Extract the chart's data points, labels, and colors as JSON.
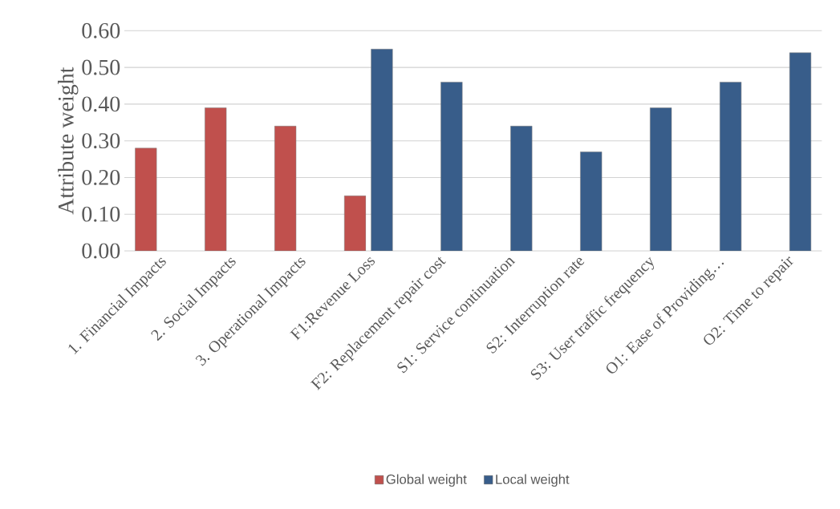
{
  "chart_data": {
    "type": "bar",
    "ylabel": "Attribute weight",
    "categories": [
      "1. Financial Impacts",
      "2. Social Impacts",
      "3. Operational Impacts",
      "F1:Revenue Loss",
      "F2: Replacement repair cost",
      "S1: Service continuation",
      "S2: Interruption rate",
      "S3: User traffic frequency",
      "O1: Ease of Providing…",
      "O2: Time to repair"
    ],
    "series": [
      {
        "name": "Global weight",
        "color": "#c0504d",
        "values": [
          0.28,
          0.39,
          0.34,
          0.15,
          null,
          null,
          null,
          null,
          null,
          null
        ]
      },
      {
        "name": "Local weight",
        "color": "#385d8a",
        "values": [
          null,
          null,
          null,
          0.55,
          0.46,
          0.34,
          0.27,
          0.39,
          0.46,
          0.54
        ]
      }
    ],
    "ylim": [
      0,
      0.6
    ],
    "yticks": [
      {
        "value": 0,
        "label": "0.00"
      },
      {
        "value": 0.1,
        "label": "0.10"
      },
      {
        "value": 0.2,
        "label": "0.20"
      },
      {
        "value": 0.3,
        "label": "0.30"
      },
      {
        "value": 0.4,
        "label": "0.40"
      },
      {
        "value": 0.5,
        "label": "0.50"
      },
      {
        "value": 0.6,
        "label": "0.60"
      }
    ],
    "grid": "y",
    "legend": "bottom"
  }
}
